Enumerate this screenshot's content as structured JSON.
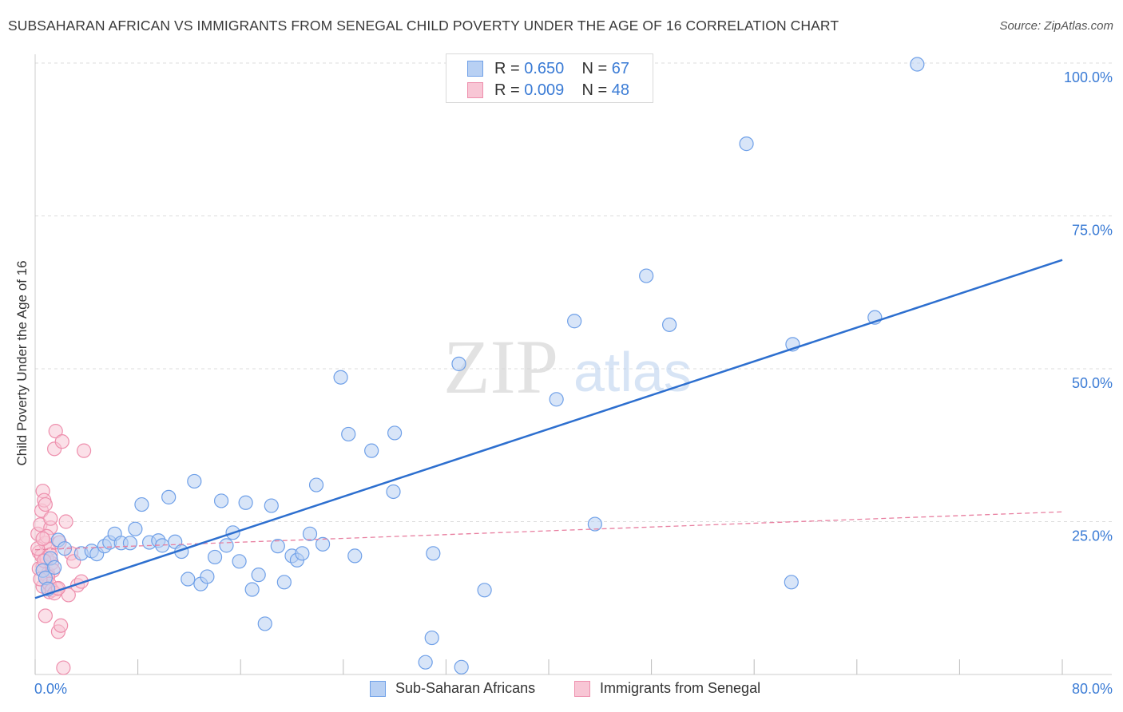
{
  "title": "SUBSAHARAN AFRICAN VS IMMIGRANTS FROM SENEGAL CHILD POVERTY UNDER THE AGE OF 16 CORRELATION CHART",
  "source": "Source: ZipAtlas.com",
  "watermark": {
    "zip": "ZIP",
    "atlas": "atlas"
  },
  "colors": {
    "blue": "#6fa0e8",
    "blue_fill": "#b8d0f3",
    "blue_line": "#2d6fcf",
    "blue_text": "#3a7bd5",
    "pink": "#ee8fad",
    "pink_fill": "#f8c6d5",
    "pink_line": "#e87fa0"
  },
  "legend_top": {
    "row1": {
      "r_label": "R = ",
      "r_value": "0.650",
      "n_label": "N = ",
      "n_value": "67"
    },
    "row2": {
      "r_label": "R = ",
      "r_value": "0.009",
      "n_label": "N = ",
      "n_value": "48"
    }
  },
  "chart_data": {
    "type": "scatter",
    "title": "SUBSAHARAN AFRICAN VS IMMIGRANTS FROM SENEGAL CHILD POVERTY UNDER THE AGE OF 16 CORRELATION CHART",
    "xlabel": "",
    "ylabel": "Child Poverty Under the Age of 16",
    "xlim": [
      0,
      80
    ],
    "ylim": [
      0,
      100
    ],
    "x_tick_labels": [
      "0.0%",
      "80.0%"
    ],
    "y_tick_labels": [
      "25.0%",
      "50.0%",
      "75.0%",
      "100.0%"
    ],
    "y_ticks": [
      25,
      50,
      75,
      100
    ],
    "x_ticks": [
      0,
      8,
      16,
      24,
      32,
      40,
      48,
      56,
      64,
      72,
      80
    ],
    "grid": true,
    "legend": [
      "Sub-Saharan Africans",
      "Immigrants from Senegal"
    ],
    "series": [
      {
        "name": "Sub-Saharan Africans",
        "r": 0.65,
        "n": 67,
        "trend": {
          "x": [
            0,
            80
          ],
          "y": [
            12.5,
            67.8
          ]
        },
        "points": [
          [
            0.6,
            17.0
          ],
          [
            0.8,
            15.8
          ],
          [
            1.2,
            19.0
          ],
          [
            1.8,
            22.0
          ],
          [
            2.3,
            20.6
          ],
          [
            3.6,
            19.8
          ],
          [
            4.4,
            20.2
          ],
          [
            4.8,
            19.7
          ],
          [
            5.4,
            21.0
          ],
          [
            5.8,
            21.6
          ],
          [
            6.2,
            23.0
          ],
          [
            6.7,
            21.5
          ],
          [
            7.4,
            21.5
          ],
          [
            7.8,
            23.8
          ],
          [
            8.3,
            27.8
          ],
          [
            8.9,
            21.6
          ],
          [
            9.6,
            21.9
          ],
          [
            9.9,
            21.1
          ],
          [
            10.4,
            29.0
          ],
          [
            10.9,
            21.7
          ],
          [
            11.4,
            20.1
          ],
          [
            11.9,
            15.6
          ],
          [
            12.4,
            31.6
          ],
          [
            12.9,
            14.8
          ],
          [
            13.4,
            16.0
          ],
          [
            14.0,
            19.2
          ],
          [
            14.5,
            28.4
          ],
          [
            14.9,
            21.1
          ],
          [
            15.4,
            23.2
          ],
          [
            15.9,
            18.5
          ],
          [
            16.4,
            28.1
          ],
          [
            16.9,
            13.9
          ],
          [
            17.4,
            16.3
          ],
          [
            17.9,
            8.3
          ],
          [
            18.4,
            27.6
          ],
          [
            18.9,
            21.0
          ],
          [
            19.4,
            15.1
          ],
          [
            20.0,
            19.4
          ],
          [
            20.4,
            18.7
          ],
          [
            20.8,
            19.8
          ],
          [
            21.4,
            23.0
          ],
          [
            21.9,
            31.0
          ],
          [
            22.4,
            21.3
          ],
          [
            23.8,
            48.6
          ],
          [
            24.4,
            39.3
          ],
          [
            24.9,
            19.4
          ],
          [
            26.2,
            36.6
          ],
          [
            27.9,
            29.9
          ],
          [
            28.0,
            39.5
          ],
          [
            30.4,
            2.0
          ],
          [
            30.9,
            6.0
          ],
          [
            31.0,
            19.8
          ],
          [
            33.0,
            50.8
          ],
          [
            33.2,
            1.2
          ],
          [
            35.0,
            13.8
          ],
          [
            40.6,
            45.0
          ],
          [
            42.0,
            57.8
          ],
          [
            43.6,
            24.6
          ],
          [
            47.6,
            65.2
          ],
          [
            49.4,
            57.2
          ],
          [
            55.4,
            86.8
          ],
          [
            58.9,
            15.1
          ],
          [
            59.0,
            54.0
          ],
          [
            65.4,
            58.4
          ],
          [
            68.7,
            99.8
          ],
          [
            1.0,
            14.0
          ],
          [
            1.5,
            17.5
          ]
        ]
      },
      {
        "name": "Immigrants from Senegal",
        "r": 0.009,
        "n": 48,
        "trend": {
          "x": [
            0,
            80
          ],
          "y": [
            20.4,
            26.6
          ]
        },
        "points": [
          [
            0.2,
            23.0
          ],
          [
            0.3,
            20.0
          ],
          [
            0.4,
            24.5
          ],
          [
            0.5,
            26.8
          ],
          [
            0.6,
            17.7
          ],
          [
            0.6,
            30.0
          ],
          [
            0.7,
            28.5
          ],
          [
            0.8,
            27.8
          ],
          [
            0.8,
            21.5
          ],
          [
            0.9,
            15.7
          ],
          [
            1.0,
            16.5
          ],
          [
            1.1,
            13.5
          ],
          [
            1.1,
            20.5
          ],
          [
            1.2,
            24.0
          ],
          [
            1.3,
            18.2
          ],
          [
            1.4,
            17.0
          ],
          [
            1.5,
            36.9
          ],
          [
            1.6,
            39.8
          ],
          [
            1.7,
            14.0
          ],
          [
            1.8,
            7.0
          ],
          [
            1.9,
            21.6
          ],
          [
            2.0,
            8.0
          ],
          [
            2.1,
            38.1
          ],
          [
            2.2,
            1.1
          ],
          [
            2.4,
            25.0
          ],
          [
            2.6,
            13.0
          ],
          [
            2.8,
            19.8
          ],
          [
            3.0,
            18.5
          ],
          [
            3.3,
            14.6
          ],
          [
            3.6,
            15.2
          ],
          [
            3.8,
            36.6
          ],
          [
            0.3,
            17.3
          ],
          [
            0.5,
            19.4
          ],
          [
            0.6,
            14.4
          ],
          [
            0.8,
            9.6
          ],
          [
            0.9,
            19.0
          ],
          [
            1.0,
            16.0
          ],
          [
            1.1,
            14.8
          ],
          [
            1.2,
            19.6
          ],
          [
            1.3,
            13.8
          ],
          [
            0.4,
            15.6
          ],
          [
            0.7,
            18.6
          ],
          [
            0.9,
            22.6
          ],
          [
            1.2,
            25.5
          ],
          [
            1.5,
            13.3
          ],
          [
            0.2,
            20.6
          ],
          [
            0.6,
            22.2
          ],
          [
            1.8,
            14.1
          ]
        ]
      }
    ]
  },
  "legend_bottom": {
    "item1": "Sub-Saharan Africans",
    "item2": "Immigrants from Senegal"
  }
}
